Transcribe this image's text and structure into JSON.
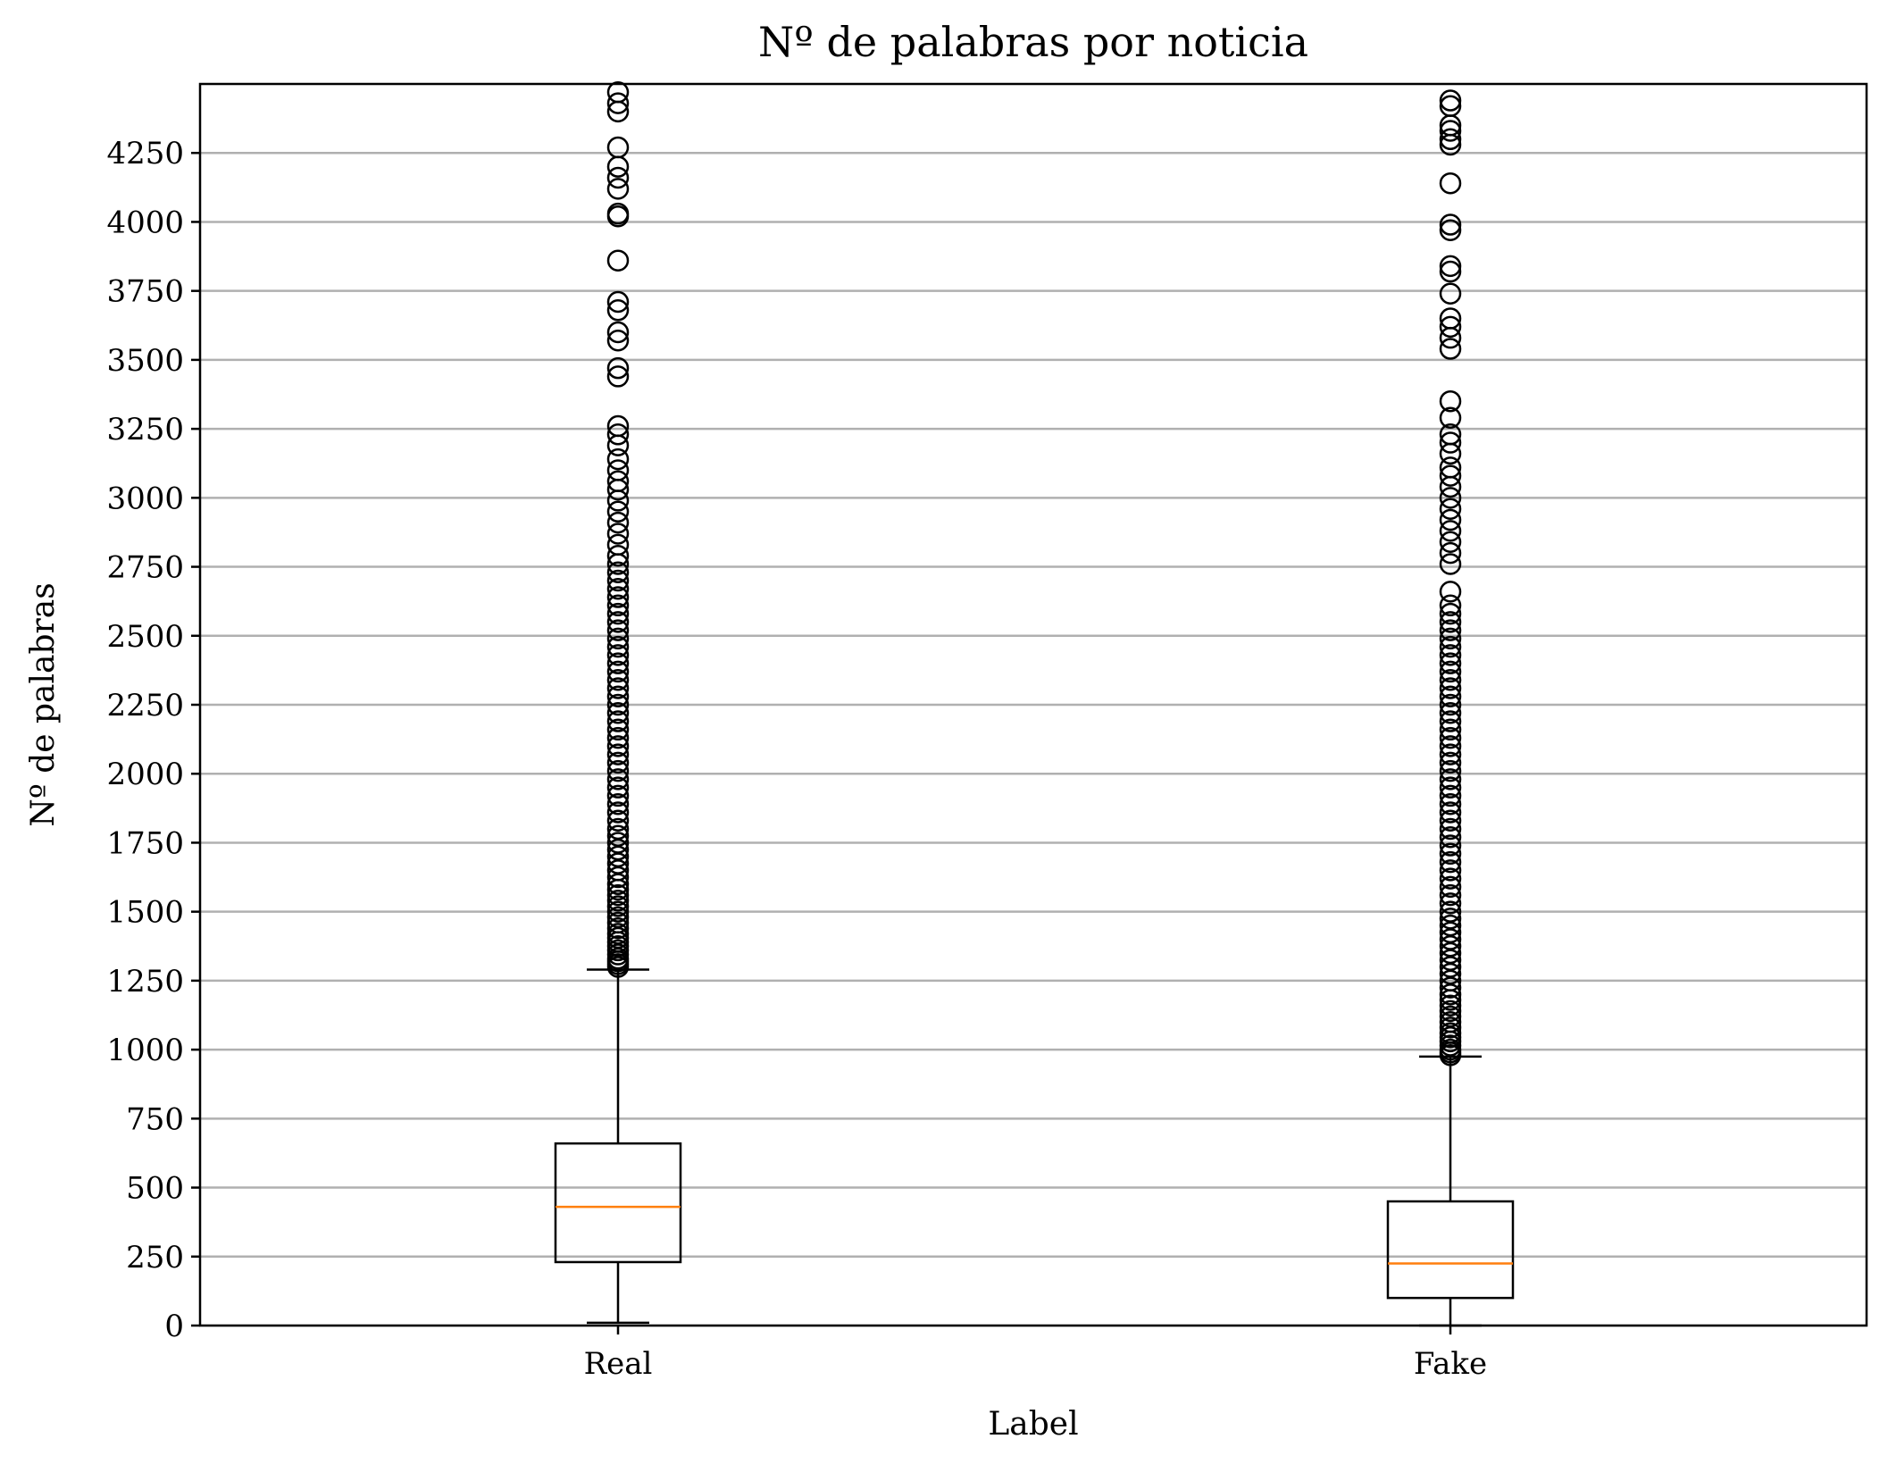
{
  "chart_data": {
    "type": "boxplot",
    "title": "Nº de palabras por noticia",
    "xlabel": "Label",
    "ylabel": "Nº de palabras",
    "categories": [
      "Real",
      "Fake"
    ],
    "ylim": [
      0,
      4500
    ],
    "yticks": [
      0,
      250,
      500,
      750,
      1000,
      1250,
      1500,
      1750,
      2000,
      2250,
      2500,
      2750,
      3000,
      3250,
      3500,
      3750,
      4000,
      4250
    ],
    "grid": "y",
    "colors": {
      "box": "#000000",
      "median": "#ff7f0e",
      "grid": "#b0b0b0",
      "flier": "#000000"
    },
    "boxes": [
      {
        "label": "Real",
        "whisker_low": 10,
        "q1": 230,
        "median": 430,
        "q3": 660,
        "whisker_high": 1290,
        "outliers": [
          1300,
          1310,
          1320,
          1330,
          1345,
          1360,
          1375,
          1390,
          1405,
          1420,
          1440,
          1460,
          1480,
          1500,
          1520,
          1540,
          1560,
          1580,
          1600,
          1625,
          1650,
          1675,
          1700,
          1725,
          1750,
          1775,
          1800,
          1830,
          1860,
          1890,
          1920,
          1950,
          1980,
          2010,
          2040,
          2070,
          2100,
          2130,
          2160,
          2190,
          2220,
          2250,
          2280,
          2310,
          2340,
          2370,
          2400,
          2430,
          2460,
          2490,
          2520,
          2550,
          2580,
          2610,
          2640,
          2670,
          2700,
          2730,
          2760,
          2790,
          2830,
          2870,
          2910,
          2950,
          2990,
          3030,
          3060,
          3100,
          3140,
          3190,
          3230,
          3260,
          3440,
          3470,
          3570,
          3600,
          3680,
          3710,
          3860,
          4020,
          4030,
          4120,
          4160,
          4200,
          4270,
          4400,
          4430,
          4470
        ]
      },
      {
        "label": "Fake",
        "whisker_low": 0,
        "q1": 100,
        "median": 225,
        "q3": 450,
        "whisker_high": 975,
        "outliers": [
          980,
          990,
          1000,
          1015,
          1030,
          1045,
          1060,
          1080,
          1100,
          1120,
          1140,
          1160,
          1180,
          1200,
          1225,
          1250,
          1275,
          1300,
          1325,
          1350,
          1375,
          1400,
          1425,
          1450,
          1475,
          1500,
          1530,
          1560,
          1590,
          1620,
          1650,
          1680,
          1710,
          1740,
          1770,
          1800,
          1830,
          1860,
          1890,
          1920,
          1950,
          1980,
          2010,
          2040,
          2070,
          2100,
          2130,
          2160,
          2190,
          2220,
          2250,
          2280,
          2310,
          2340,
          2370,
          2400,
          2430,
          2460,
          2490,
          2520,
          2550,
          2580,
          2610,
          2660,
          2760,
          2800,
          2840,
          2880,
          2920,
          2960,
          3000,
          3040,
          3080,
          3110,
          3160,
          3200,
          3230,
          3290,
          3350,
          3540,
          3580,
          3620,
          3650,
          3740,
          3820,
          3840,
          3970,
          3990,
          4140,
          4280,
          4300,
          4330,
          4350,
          4420,
          4440
        ]
      }
    ]
  }
}
